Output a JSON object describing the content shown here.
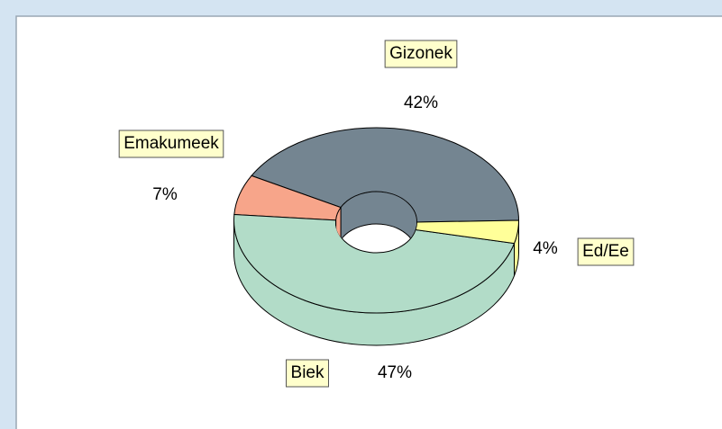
{
  "chart_data": {
    "type": "pie",
    "categories": [
      "Gizonek",
      "Emakumeek",
      "Biek",
      "Ed/Ee"
    ],
    "values": [
      42,
      7,
      47,
      4
    ],
    "value_labels": [
      "42%",
      "7%",
      "47%",
      "4%"
    ],
    "colors": [
      "#748591",
      "#f7a58a",
      "#b2dcc8",
      "#ffff99"
    ]
  }
}
